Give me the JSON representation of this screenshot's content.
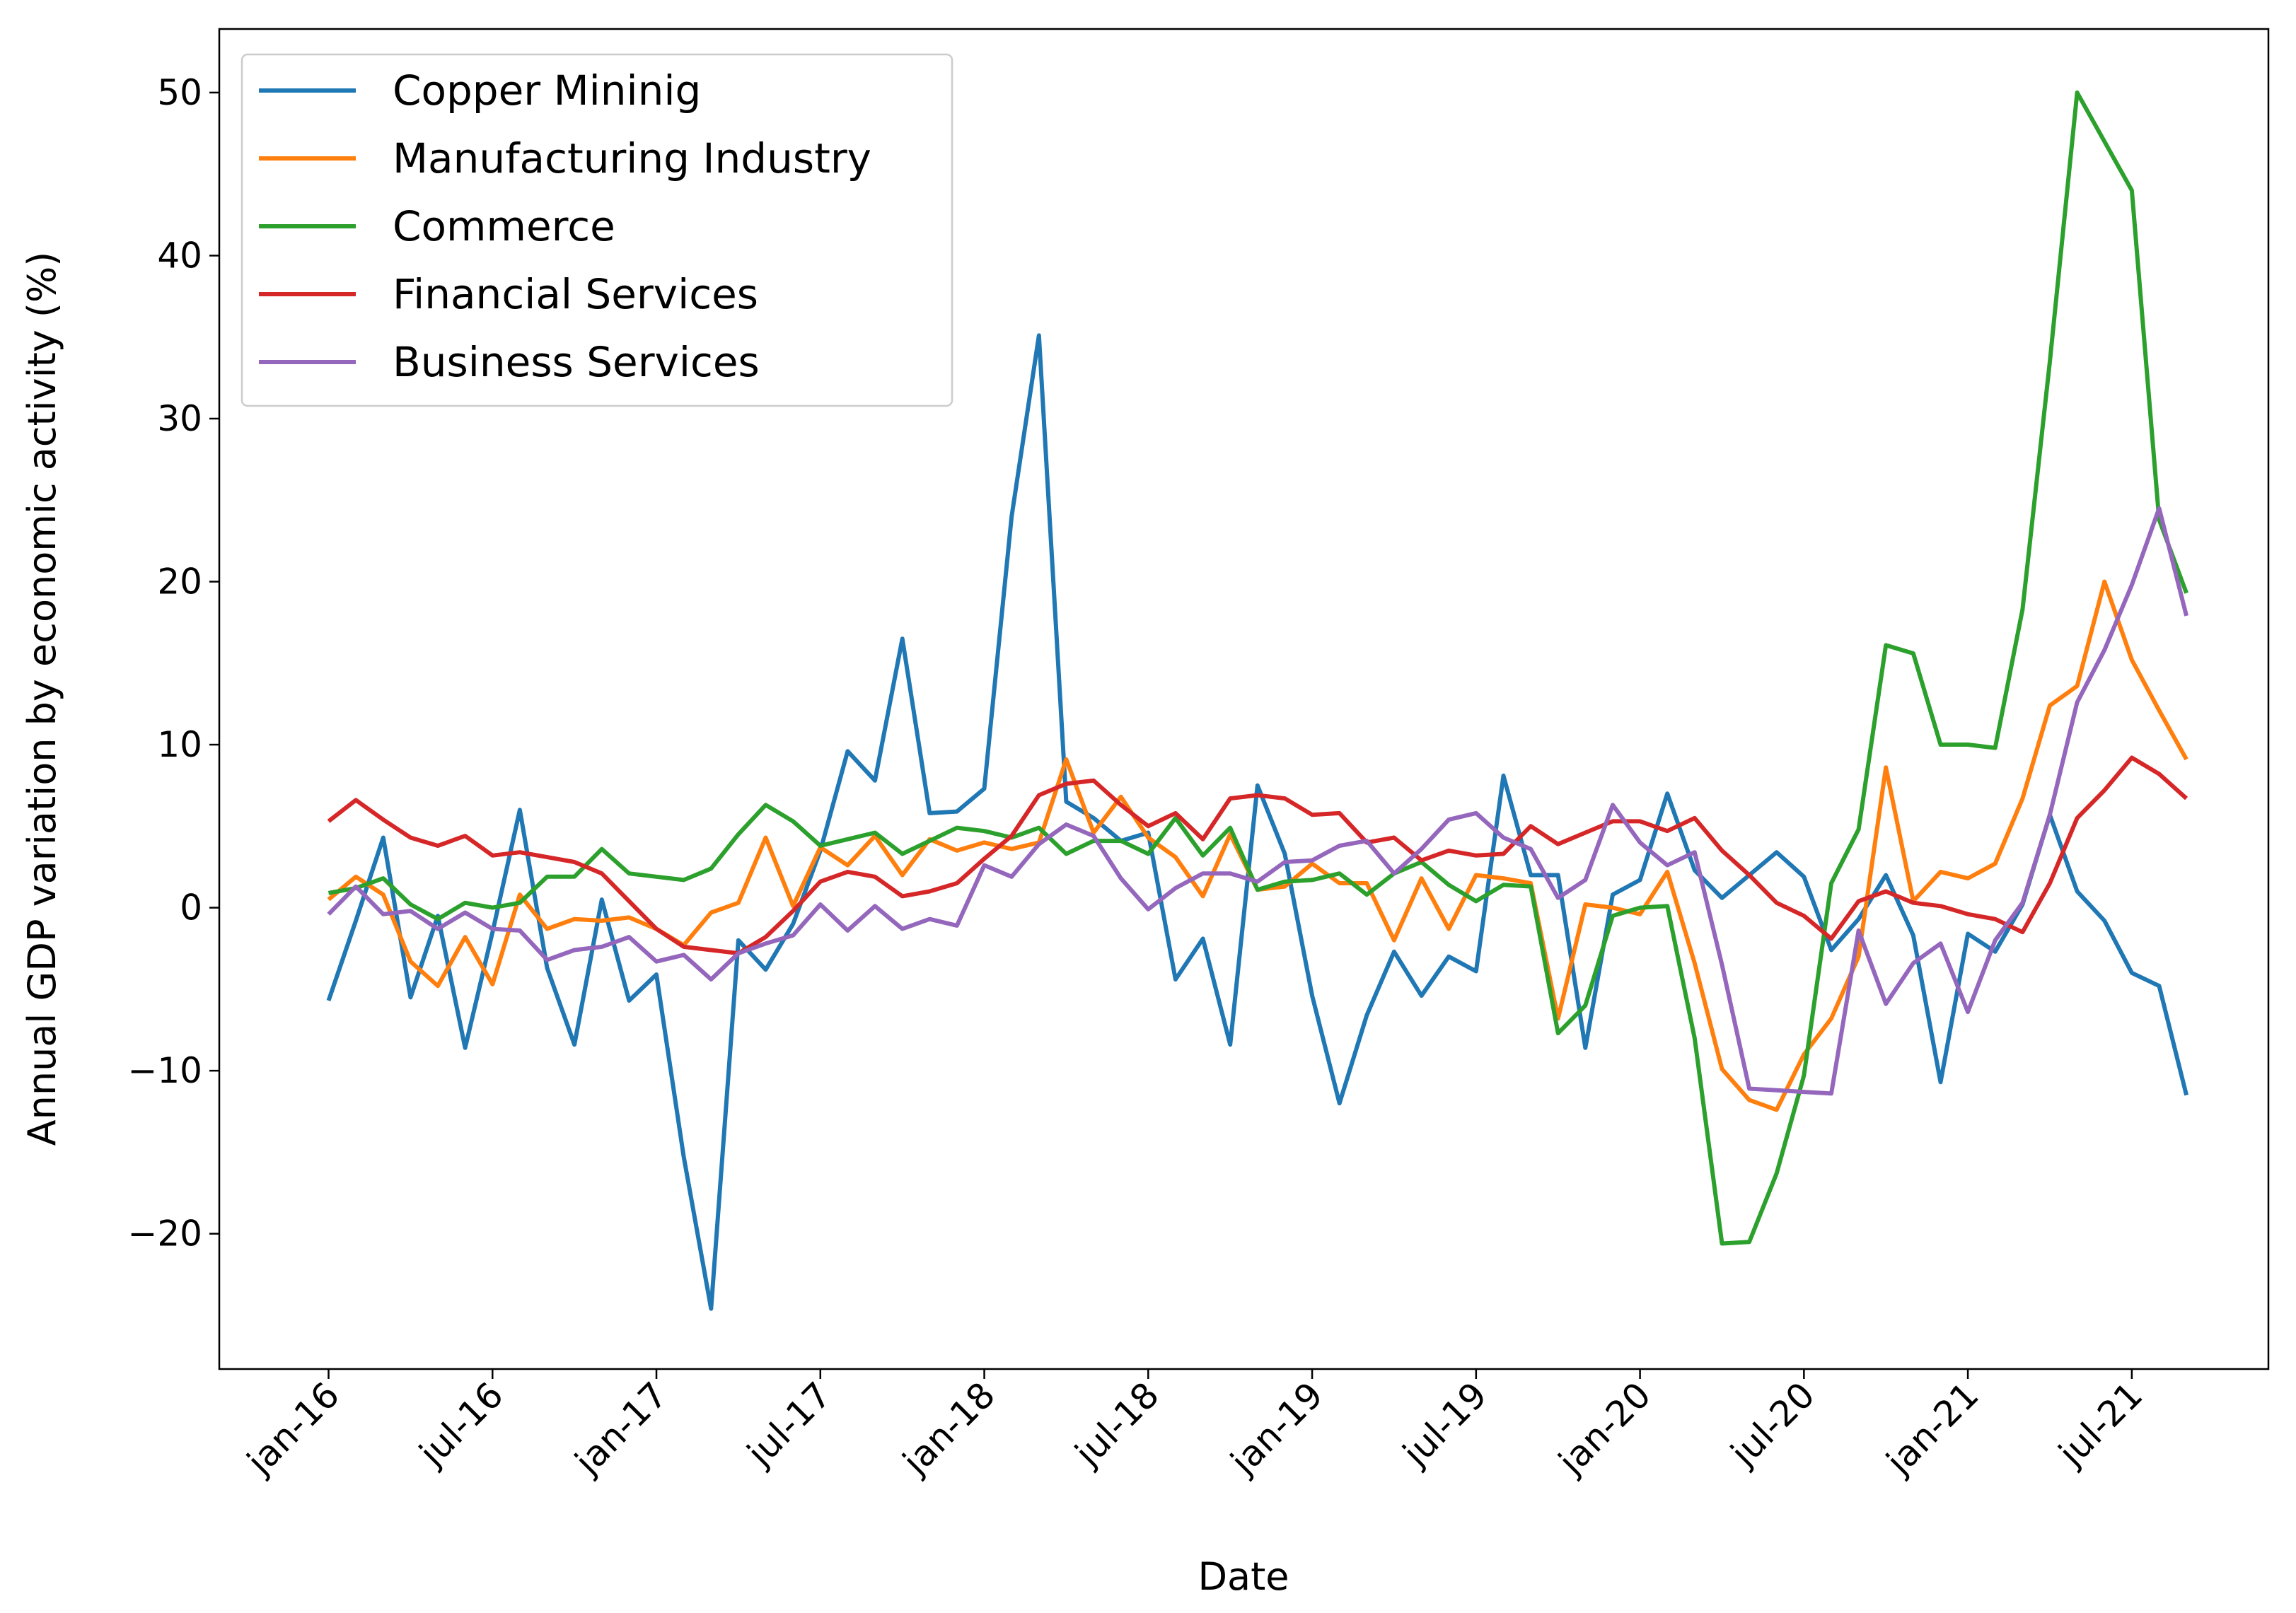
{
  "chart_data": {
    "type": "line",
    "title": "",
    "xlabel": "Date",
    "ylabel": "Annual GDP variation by economic activity (%)",
    "ylim": [
      -28.3,
      53.9
    ],
    "yticks": [
      -20,
      -10,
      0,
      10,
      20,
      30,
      40,
      50
    ],
    "ytick_labels": [
      "−20",
      "−10",
      "0",
      "10",
      "20",
      "30",
      "40",
      "50"
    ],
    "xlim": [
      "2015-09",
      "2021-12"
    ],
    "xtick_labels": [
      "jan-16",
      "jul-16",
      "jan-17",
      "jul-17",
      "jan-18",
      "jul-18",
      "jan-19",
      "jul-19",
      "jan-20",
      "jul-20",
      "jan-21",
      "jul-21"
    ],
    "xtick_dates": [
      "2016-01",
      "2016-07",
      "2017-01",
      "2017-07",
      "2018-01",
      "2018-07",
      "2019-01",
      "2019-07",
      "2020-01",
      "2020-07",
      "2021-01",
      "2021-07"
    ],
    "grid": false,
    "legend_placement": "top-left",
    "x": [
      "2016-01",
      "2016-02",
      "2016-03",
      "2016-04",
      "2016-05",
      "2016-06",
      "2016-07",
      "2016-08",
      "2016-09",
      "2016-10",
      "2016-11",
      "2016-12",
      "2017-01",
      "2017-02",
      "2017-03",
      "2017-04",
      "2017-05",
      "2017-06",
      "2017-07",
      "2017-08",
      "2017-09",
      "2017-10",
      "2017-11",
      "2017-12",
      "2018-01",
      "2018-02",
      "2018-03",
      "2018-04",
      "2018-05",
      "2018-06",
      "2018-07",
      "2018-08",
      "2018-09",
      "2018-10",
      "2018-11",
      "2018-12",
      "2019-01",
      "2019-02",
      "2019-03",
      "2019-04",
      "2019-05",
      "2019-06",
      "2019-07",
      "2019-08",
      "2019-09",
      "2019-10",
      "2019-11",
      "2019-12",
      "2020-01",
      "2020-02",
      "2020-03",
      "2020-04",
      "2020-05",
      "2020-06",
      "2020-07",
      "2020-08",
      "2020-09",
      "2020-10",
      "2020-11",
      "2020-12",
      "2021-01",
      "2021-02",
      "2021-03",
      "2021-04",
      "2021-05",
      "2021-06",
      "2021-07",
      "2021-08",
      "2021-09"
    ],
    "series": [
      {
        "name": "Copper Mininig",
        "color": "#1f77b4",
        "values": [
          -5.7,
          -0.8,
          4.3,
          -5.5,
          -0.5,
          -8.6,
          -1.5,
          6.0,
          -3.7,
          -8.4,
          0.5,
          -5.7,
          -4.1,
          -15.3,
          -24.6,
          -2.0,
          -3.8,
          -1.0,
          3.5,
          9.6,
          7.8,
          16.5,
          5.8,
          5.9,
          7.3,
          24.0,
          35.1,
          6.5,
          5.5,
          4.1,
          4.6,
          -4.4,
          -1.9,
          -8.4,
          7.5,
          3.3,
          -5.4,
          -12.0,
          -6.6,
          -2.7,
          -5.4,
          -3.0,
          -3.9,
          8.1,
          2.0,
          2.0,
          -8.6,
          0.8,
          1.7,
          7.0,
          2.3,
          0.6,
          2.0,
          3.4,
          1.9,
          -2.6,
          -0.7,
          2.0,
          -1.7,
          -10.7,
          -1.6,
          -2.7,
          0.2,
          5.7,
          1.0,
          -0.8,
          -4.0,
          -4.8,
          -11.5
        ]
      },
      {
        "name": "Manufacturing Industry",
        "color": "#ff7f0e",
        "values": [
          0.5,
          1.9,
          0.8,
          -3.3,
          -4.8,
          -1.8,
          -4.7,
          0.8,
          -1.3,
          -0.7,
          -0.8,
          -0.6,
          -1.3,
          -2.3,
          -0.3,
          0.3,
          4.3,
          0.1,
          3.7,
          2.6,
          4.4,
          2.0,
          4.2,
          3.5,
          4.0,
          3.6,
          4.0,
          9.1,
          4.6,
          6.8,
          4.3,
          3.1,
          0.7,
          4.5,
          1.1,
          1.3,
          2.7,
          1.5,
          1.5,
          -2.0,
          1.8,
          -1.3,
          2.0,
          1.8,
          1.5,
          -6.8,
          0.2,
          0.0,
          -0.4,
          2.2,
          -3.4,
          -9.9,
          -11.8,
          -12.4,
          -9.0,
          -6.8,
          -3.0,
          8.6,
          0.4,
          2.2,
          1.8,
          2.7,
          6.7,
          12.4,
          13.6,
          20.0,
          15.2,
          12.1,
          9.1
        ]
      },
      {
        "name": "Commerce",
        "color": "#2ca02c",
        "values": [
          0.9,
          1.2,
          1.8,
          0.2,
          -0.7,
          0.3,
          0.0,
          0.3,
          1.9,
          1.9,
          3.6,
          2.1,
          1.9,
          1.7,
          2.4,
          4.5,
          6.3,
          5.3,
          3.8,
          4.2,
          4.6,
          3.3,
          4.1,
          4.9,
          4.7,
          4.3,
          4.9,
          3.3,
          4.1,
          4.1,
          3.3,
          5.5,
          3.2,
          4.9,
          1.1,
          1.6,
          1.7,
          2.1,
          0.8,
          2.1,
          2.8,
          1.4,
          0.4,
          1.4,
          1.3,
          -7.7,
          -6.0,
          -0.5,
          0.0,
          0.1,
          -8.0,
          -20.6,
          -20.5,
          -16.3,
          -10.3,
          1.5,
          4.8,
          16.1,
          15.6,
          10.0,
          10.0,
          9.8,
          18.3,
          33.5,
          50.0,
          47.0,
          44.0,
          23.8,
          19.3
        ]
      },
      {
        "name": "Financial Services",
        "color": "#d62728",
        "values": [
          5.3,
          6.6,
          5.4,
          4.3,
          3.8,
          4.4,
          3.2,
          3.4,
          3.1,
          2.8,
          2.1,
          0.4,
          -1.3,
          -2.4,
          -2.6,
          -2.8,
          -1.8,
          -0.2,
          1.6,
          2.2,
          1.9,
          0.7,
          1.0,
          1.5,
          3.0,
          4.4,
          6.9,
          7.6,
          7.8,
          6.3,
          5.0,
          5.8,
          4.2,
          6.7,
          6.9,
          6.7,
          5.7,
          5.8,
          4.0,
          4.3,
          2.9,
          3.5,
          3.2,
          3.3,
          5.0,
          3.9,
          4.6,
          5.3,
          5.3,
          4.7,
          5.5,
          3.5,
          2.0,
          0.3,
          -0.5,
          -1.9,
          0.4,
          1.0,
          0.3,
          0.1,
          -0.4,
          -0.7,
          -1.5,
          1.5,
          5.5,
          7.2,
          9.2,
          8.2,
          6.7
        ]
      },
      {
        "name": "Business Services",
        "color": "#9467bd",
        "values": [
          -0.4,
          1.3,
          -0.4,
          -0.2,
          -1.3,
          -0.3,
          -1.3,
          -1.4,
          -3.2,
          -2.6,
          -2.4,
          -1.8,
          -3.3,
          -2.9,
          -4.4,
          -2.8,
          -2.2,
          -1.7,
          0.2,
          -1.4,
          0.1,
          -1.3,
          -0.7,
          -1.1,
          2.6,
          1.9,
          3.9,
          5.1,
          4.4,
          1.8,
          -0.1,
          1.2,
          2.1,
          2.1,
          1.6,
          2.8,
          2.9,
          3.8,
          4.1,
          2.1,
          3.6,
          5.4,
          5.8,
          4.3,
          3.6,
          0.6,
          1.7,
          6.3,
          4.0,
          2.6,
          3.4,
          -3.5,
          -11.1,
          -11.2,
          -11.3,
          -11.4,
          -1.4,
          -5.9,
          -3.4,
          -2.2,
          -6.4,
          -2.0,
          0.3,
          5.7,
          12.6,
          15.8,
          19.8,
          24.5,
          17.9
        ]
      }
    ]
  }
}
